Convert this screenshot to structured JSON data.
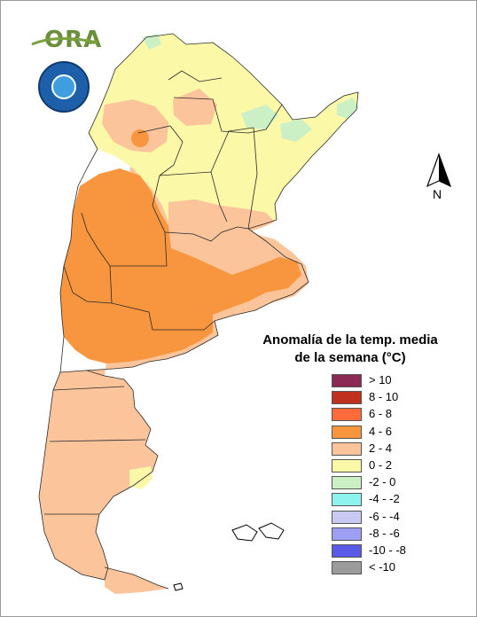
{
  "logo": {
    "text": "ORA"
  },
  "north_arrow": {
    "label": "N"
  },
  "legend": {
    "title_line1": "Anomalía de la temp. media",
    "title_line2": "de la semana (°C)",
    "items": [
      {
        "label": "> 10",
        "color": "#8b2a55"
      },
      {
        "label": "8 - 10",
        "color": "#c0301e"
      },
      {
        "label": "6 - 8",
        "color": "#ff6a3a"
      },
      {
        "label": "4 - 6",
        "color": "#f7963e"
      },
      {
        "label": "2 - 4",
        "color": "#fbc49a"
      },
      {
        "label": "0 - 2",
        "color": "#fbf8a8"
      },
      {
        "label": "-2 - 0",
        "color": "#ccf0c6"
      },
      {
        "label": "-4 - -2",
        "color": "#8ef2ee"
      },
      {
        "label": "-6 - -4",
        "color": "#c9c9f4"
      },
      {
        "label": "-8 - -6",
        "color": "#9e9ef2"
      },
      {
        "label": "-10 - -8",
        "color": "#5a5ae8"
      },
      {
        "label": "< -10",
        "color": "#9b9b9b"
      }
    ]
  }
}
